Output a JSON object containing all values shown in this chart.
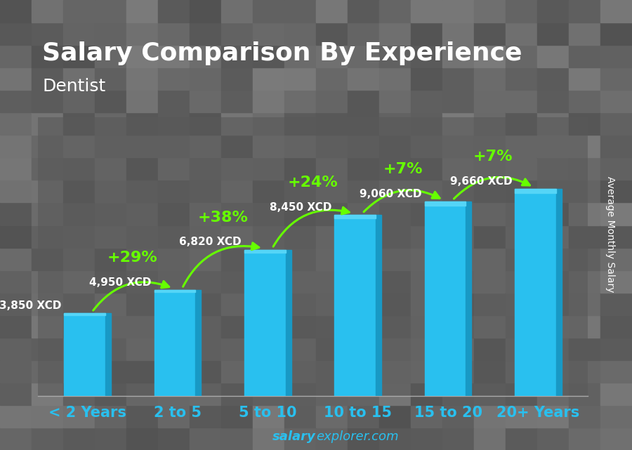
{
  "title": "Salary Comparison By Experience",
  "subtitle": "Dentist",
  "categories": [
    "< 2 Years",
    "2 to 5",
    "5 to 10",
    "10 to 15",
    "15 to 20",
    "20+ Years"
  ],
  "values": [
    3850,
    4950,
    6820,
    8450,
    9060,
    9660
  ],
  "bar_color": "#29c0ef",
  "bar_color_light": "#55d5f7",
  "bar_color_dark": "#1899c5",
  "pct_labels": [
    "+29%",
    "+38%",
    "+24%",
    "+7%",
    "+7%"
  ],
  "value_labels": [
    "3,850 XCD",
    "4,950 XCD",
    "6,820 XCD",
    "8,450 XCD",
    "9,060 XCD",
    "9,660 XCD"
  ],
  "pct_color": "#66ff00",
  "ylabel": "Average Monthly Salary",
  "background_color": "#606060",
  "title_fontsize": 26,
  "subtitle_fontsize": 18,
  "tick_fontsize": 15,
  "val_label_fontsize": 11,
  "pct_fontsize": 16,
  "ylabel_fontsize": 10,
  "watermark_salary_color": "#29c0ef",
  "watermark_explorer_color": "#29c0ef",
  "ylim": [
    0,
    13000
  ],
  "bar_width": 0.52
}
